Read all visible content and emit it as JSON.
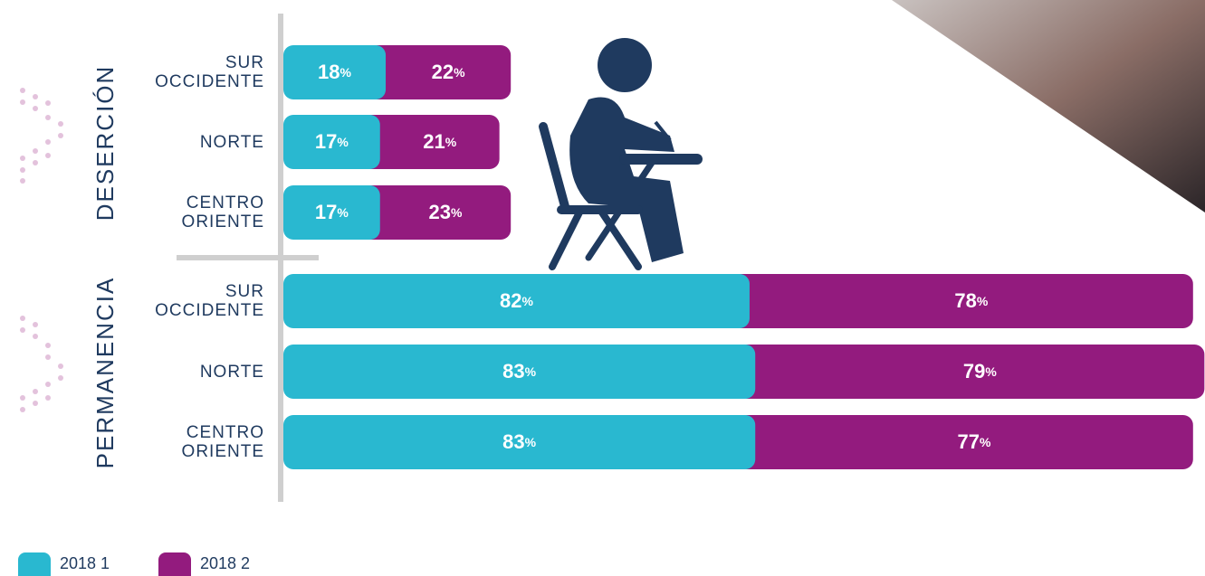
{
  "chart_data": [
    {
      "type": "stacked-bar",
      "title": "DESERCIÓN",
      "categories": [
        "SUR OCCIDENTE",
        "NORTE",
        "CENTRO ORIENTE"
      ],
      "series": [
        {
          "name": "2018 1",
          "color": "#29b8d0",
          "values": [
            18,
            17,
            17
          ],
          "value_labels": [
            "18%",
            "17%",
            "17%"
          ]
        },
        {
          "name": "2018 2",
          "color": "#931b7e",
          "values": [
            22,
            21,
            23
          ],
          "value_labels": [
            "22%",
            "21%",
            "23%"
          ]
        }
      ]
    },
    {
      "type": "stacked-bar",
      "title": "PERMANENCIA",
      "categories": [
        "SUR OCCIDENTE",
        "NORTE",
        "CENTRO ORIENTE"
      ],
      "series": [
        {
          "name": "2018 1",
          "color": "#29b8d0",
          "values": [
            82,
            83,
            83
          ],
          "value_labels": [
            "82%",
            "83%",
            "83%"
          ]
        },
        {
          "name": "2018 2",
          "color": "#931b7e",
          "values": [
            78,
            79,
            77
          ],
          "value_labels": [
            "78%",
            "79%",
            "77%"
          ]
        }
      ]
    }
  ]
}
